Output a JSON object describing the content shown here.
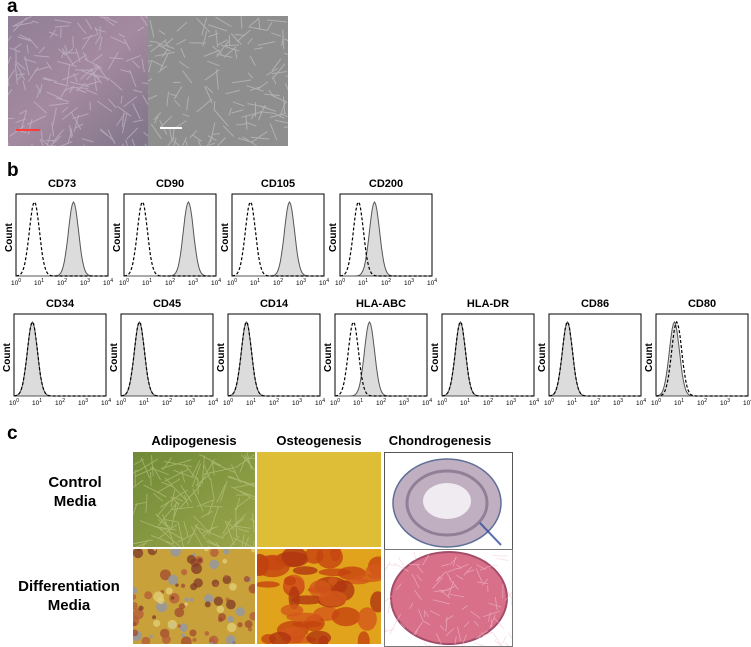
{
  "panels": {
    "a": "a",
    "b": "b",
    "c": "c"
  },
  "colors": {
    "scalebar_left": "#ff3b3b",
    "scalebar_right": "#ffffff",
    "fill_marker": "#dcdcdc",
    "isotype_line": "#000000",
    "adipo_control": "#8a9a3c",
    "osteo_control": "#d9b82a",
    "adipo_diff": "#c9a13a",
    "osteo_diff": "#c4420f",
    "chondro_control": "#b7a3b8",
    "chondro_diff": "#d96a86"
  },
  "flow": {
    "count_label": "Count",
    "tick_labels": [
      "10",
      "10",
      "10",
      "10",
      "10"
    ],
    "tick_exponents": [
      "0",
      "1",
      "2",
      "3",
      "4"
    ],
    "row1": [
      {
        "title": "CD73",
        "marker_peak": 2.5,
        "iso_peak": 0.8
      },
      {
        "title": "CD90",
        "marker_peak": 2.8,
        "iso_peak": 0.8
      },
      {
        "title": "CD105",
        "marker_peak": 2.5,
        "iso_peak": 0.8
      },
      {
        "title": "CD200",
        "marker_peak": 1.5,
        "iso_peak": 0.8
      }
    ],
    "row2": [
      {
        "title": "CD34",
        "marker_peak": 0.8,
        "iso_peak": 0.8
      },
      {
        "title": "CD45",
        "marker_peak": 0.8,
        "iso_peak": 0.8
      },
      {
        "title": "CD14",
        "marker_peak": 0.8,
        "iso_peak": 0.8
      },
      {
        "title": "HLA-ABC",
        "marker_peak": 1.5,
        "iso_peak": 0.8
      },
      {
        "title": "HLA-DR",
        "marker_peak": 0.8,
        "iso_peak": 0.8
      },
      {
        "title": "CD86",
        "marker_peak": 0.8,
        "iso_peak": 0.8
      },
      {
        "title": "CD80",
        "marker_peak": 0.8,
        "iso_peak": 0.9
      }
    ]
  },
  "differentiation": {
    "columns": [
      "Adipogenesis",
      "Osteogenesis",
      "Chondrogenesis"
    ],
    "rows": [
      "Control\nMedia",
      "Differentiation\nMedia"
    ]
  }
}
